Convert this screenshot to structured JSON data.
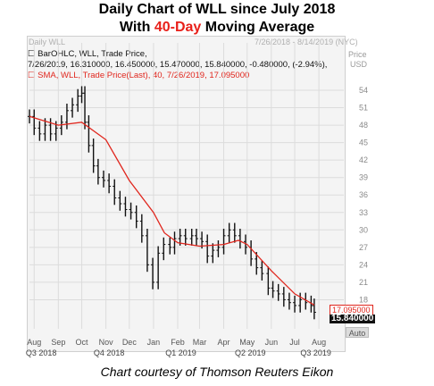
{
  "title_line1": "Daily Chart of WLL since July 2018",
  "title_line2_pre": "With ",
  "title_line2_hl": "40-Day",
  "title_line2_post": " Moving Average",
  "panel_label": "Daily WLL",
  "date_range": "7/26/2018 - 8/14/2019 (NYC)",
  "price_label": "Price",
  "currency_label": "USD",
  "legend_ohlc_name": "BarOHLC, WLL, Trade Price,",
  "legend_ohlc_values": "7/26/2019, 16.310000, 16.450000, 15.470000, 15.840000, -0.480000, (-2.94%),",
  "legend_sma": "SMA, WLL, Trade Price(Last), 40, 7/26/2019, 17.095000",
  "sma_tag": "17.095000",
  "close_tag": "15.840000",
  "auto_label": "Auto",
  "caption": "Chart courtesy of Thomson Reuters Eikon",
  "colors": {
    "accent": "#e8201a",
    "bars": "#111111",
    "sma": "#e0261d",
    "grid": "#dcdcdc"
  },
  "chart_data": {
    "type": "line",
    "x_labels": [
      "Aug",
      "Sep",
      "Oct",
      "Nov",
      "Dec",
      "Jan",
      "Feb",
      "Mar",
      "Apr",
      "May",
      "Jun",
      "Jul",
      "Aug"
    ],
    "quarter_labels": [
      "Q3 2018",
      "Q4 2018",
      "Q1 2019",
      "Q2 2019",
      "Q3 2019"
    ],
    "ylim": [
      13,
      56
    ],
    "y_ticks": [
      54,
      51,
      48,
      45,
      42,
      39,
      36,
      33,
      30,
      27,
      24,
      21,
      18
    ],
    "grid": true,
    "series": [
      {
        "kind": "ohlc_close",
        "x": [
          "2018-07-26",
          "2018-08-01",
          "2018-08-08",
          "2018-08-15",
          "2018-08-22",
          "2018-08-29",
          "2018-09-05",
          "2018-09-12",
          "2018-09-19",
          "2018-09-26",
          "2018-10-01",
          "2018-10-05",
          "2018-10-10",
          "2018-10-16",
          "2018-10-22",
          "2018-10-29",
          "2018-11-05",
          "2018-11-12",
          "2018-11-19",
          "2018-11-26",
          "2018-12-03",
          "2018-12-10",
          "2018-12-17",
          "2018-12-24",
          "2018-12-31",
          "2019-01-07",
          "2019-01-14",
          "2019-01-22",
          "2019-01-28",
          "2019-02-04",
          "2019-02-11",
          "2019-02-19",
          "2019-02-25",
          "2019-03-04",
          "2019-03-11",
          "2019-03-18",
          "2019-03-25",
          "2019-04-01",
          "2019-04-08",
          "2019-04-15",
          "2019-04-22",
          "2019-04-29",
          "2019-05-06",
          "2019-05-13",
          "2019-05-20",
          "2019-05-28",
          "2019-06-03",
          "2019-06-10",
          "2019-06-17",
          "2019-06-24",
          "2019-07-01",
          "2019-07-08",
          "2019-07-15",
          "2019-07-22",
          "2019-07-26"
        ],
        "close": [
          49.5,
          47.5,
          46.5,
          48.0,
          46.5,
          47.5,
          48.5,
          50.5,
          51.5,
          53.0,
          53.5,
          48.5,
          44.5,
          41.0,
          39.0,
          38.5,
          37.5,
          35.5,
          34.5,
          33.5,
          33.0,
          31.5,
          29.0,
          24.0,
          21.0,
          26.0,
          27.5,
          27.0,
          28.5,
          29.0,
          28.5,
          29.0,
          28.5,
          28.0,
          25.5,
          26.5,
          27.0,
          29.0,
          30.0,
          29.0,
          28.0,
          27.0,
          25.0,
          23.5,
          22.5,
          20.0,
          19.5,
          19.0,
          18.0,
          17.5,
          17.0,
          18.0,
          17.5,
          17.0,
          15.84
        ]
      },
      {
        "name": "SMA 40",
        "x": [
          "2018-07-26",
          "2018-09-01",
          "2018-10-01",
          "2018-11-01",
          "2018-12-01",
          "2019-01-01",
          "2019-01-15",
          "2019-02-01",
          "2019-03-01",
          "2019-04-01",
          "2019-04-20",
          "2019-05-01",
          "2019-06-01",
          "2019-07-01",
          "2019-07-26"
        ],
        "y": [
          49.5,
          48.0,
          48.5,
          45.5,
          38.5,
          33.0,
          29.5,
          27.8,
          27.2,
          27.5,
          28.2,
          27.5,
          23.0,
          19.0,
          17.095
        ]
      }
    ]
  }
}
